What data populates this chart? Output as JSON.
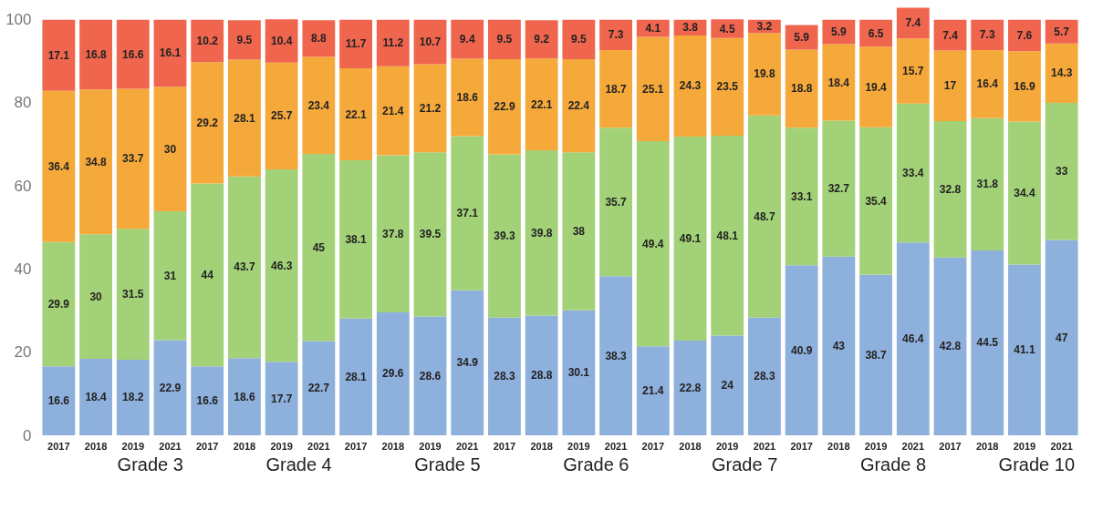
{
  "chart_data": {
    "type": "bar",
    "stacked": true,
    "data_labels": true,
    "grid": false,
    "legend": false,
    "categories": [
      "2017",
      "2018",
      "2019",
      "2021",
      "2017",
      "2018",
      "2019",
      "2021",
      "2017",
      "2018",
      "2019",
      "2021",
      "2017",
      "2018",
      "2019",
      "2021",
      "2017",
      "2018",
      "2019",
      "2021",
      "2017",
      "2018",
      "2019",
      "2021",
      "2017",
      "2018",
      "2019",
      "2021"
    ],
    "annotations": [
      "Grade 3",
      "Grade 4",
      "Grade 5",
      "Grade 6",
      "Grade 7",
      "Grade 8",
      "Grade 10"
    ],
    "ylim": [
      0,
      103
    ],
    "yticks": [
      0,
      20,
      40,
      60,
      80,
      100
    ],
    "series": [
      {
        "color": "#8eb0dc",
        "values": [
          16.6,
          18.4,
          18.2,
          22.9,
          16.6,
          18.6,
          17.7,
          22.7,
          28.1,
          29.6,
          28.6,
          34.9,
          28.3,
          28.8,
          30.1,
          38.3,
          21.4,
          22.8,
          24,
          28.3,
          40.9,
          43,
          38.7,
          46.4,
          42.8,
          44.5,
          41.1,
          47
        ]
      },
      {
        "color": "#a3d177",
        "values": [
          29.9,
          30,
          31.5,
          31,
          44,
          43.7,
          46.3,
          45,
          38.1,
          37.8,
          39.5,
          37.1,
          39.3,
          39.8,
          38,
          35.7,
          49.4,
          49.1,
          48.1,
          48.7,
          33.1,
          32.7,
          35.4,
          33.4,
          32.8,
          31.8,
          34.4,
          33
        ]
      },
      {
        "color": "#f6a93b",
        "values": [
          36.4,
          34.8,
          33.7,
          30,
          29.2,
          28.1,
          25.7,
          23.4,
          22.1,
          21.4,
          21.2,
          18.6,
          22.9,
          22.1,
          22.4,
          18.7,
          25.1,
          24.3,
          23.5,
          19.8,
          18.8,
          18.4,
          19.4,
          15.7,
          17,
          16.4,
          16.9,
          14.3
        ]
      },
      {
        "color": "#ef654d",
        "values": [
          17.1,
          16.8,
          16.6,
          16.1,
          10.2,
          9.5,
          10.4,
          8.8,
          11.7,
          11.2,
          10.7,
          9.4,
          9.5,
          9.2,
          9.5,
          7.3,
          4.1,
          3.8,
          4.5,
          3.2,
          5.9,
          5.9,
          6.5,
          7.4,
          7.4,
          7.3,
          7.6,
          5.7
        ]
      }
    ]
  }
}
